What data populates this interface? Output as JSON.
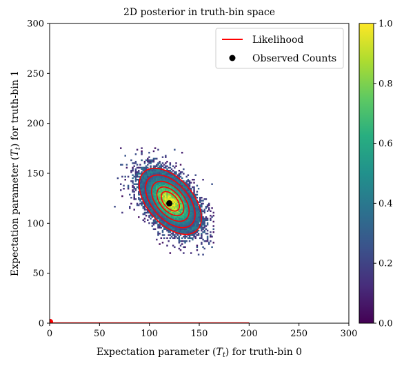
{
  "chart_data": {
    "type": "heatmap",
    "title": "2D posterior in truth-bin space",
    "xlabel": "Expectation parameter (T_t) for truth-bin 0",
    "ylabel": "Expectation parameter (T_t) for truth-bin 1",
    "xlabel_parts": [
      "Expectation parameter (",
      "T",
      "t",
      ") for truth-bin 0"
    ],
    "ylabel_parts": [
      "Expectation parameter (",
      "T",
      "t",
      ") for truth-bin 1"
    ],
    "xlim": [
      0,
      300
    ],
    "ylim": [
      0,
      300
    ],
    "x_ticks": [
      0,
      50,
      100,
      150,
      200,
      250,
      300
    ],
    "y_ticks": [
      0,
      50,
      100,
      150,
      200,
      250,
      300
    ],
    "grid": false,
    "legend_position": "top-right",
    "legend": [
      {
        "label": "Likelihood",
        "marker": "line",
        "color": "#ff0000"
      },
      {
        "label": "Observed Counts",
        "marker": "dot",
        "color": "#000000"
      }
    ],
    "colorbar": {
      "colormap": "viridis",
      "range": [
        0.0,
        1.0
      ],
      "ticks": [
        "0.0",
        "0.2",
        "0.4",
        "0.6",
        "0.8",
        "1.0"
      ]
    },
    "posterior": {
      "center": [
        121,
        122
      ],
      "sigma": [
        16,
        17
      ],
      "correlation": -0.5,
      "extent_x": [
        60,
        165
      ],
      "extent_y": [
        68,
        175
      ]
    },
    "observed_counts": {
      "x": 120,
      "y": 120
    },
    "likelihood_contour_levels": [
      0.15,
      0.3,
      0.5,
      0.7,
      0.85
    ],
    "likelihood_line_segment": {
      "x": [
        0,
        200
      ],
      "y": [
        0,
        0
      ]
    }
  }
}
